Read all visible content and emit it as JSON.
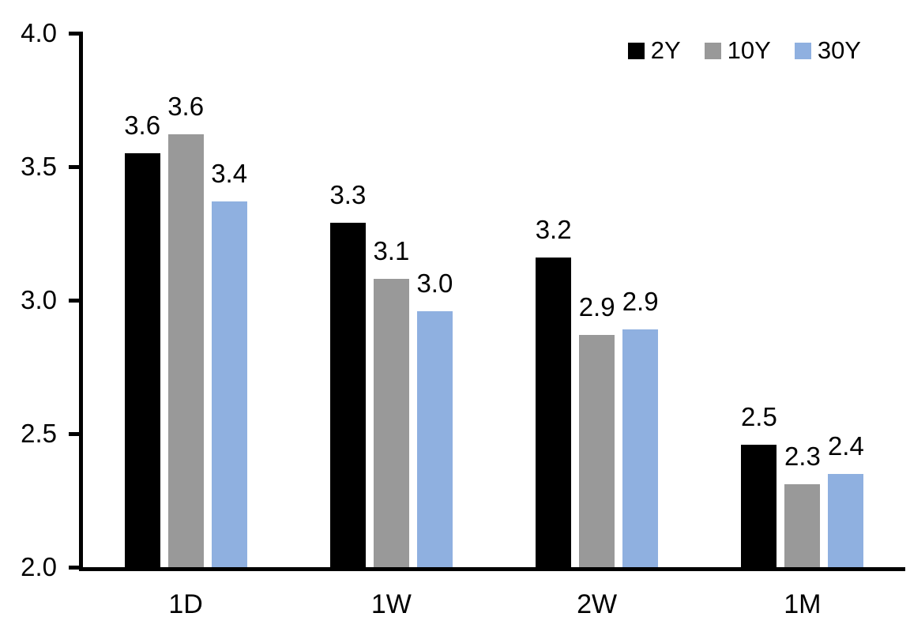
{
  "chart_data": {
    "type": "bar",
    "title": "",
    "categories": [
      "1D",
      "1W",
      "2W",
      "1M"
    ],
    "series": [
      {
        "name": "2Y",
        "color": "#000000",
        "values": [
          3.55,
          3.29,
          3.16,
          2.46
        ],
        "labels": [
          "3.6",
          "3.3",
          "3.2",
          "2.5"
        ]
      },
      {
        "name": "10Y",
        "color": "#999999",
        "values": [
          3.62,
          3.08,
          2.87,
          2.31
        ],
        "labels": [
          "3.6",
          "3.1",
          "2.9",
          "2.3"
        ]
      },
      {
        "name": "30Y",
        "color": "#8FB0E0",
        "values": [
          3.37,
          2.96,
          2.89,
          2.35
        ],
        "labels": [
          "3.4",
          "3.0",
          "2.9",
          "2.4"
        ]
      }
    ],
    "y_axis": {
      "min": 2.0,
      "max": 4.0,
      "tick_values": [
        4.0,
        3.5,
        3.0,
        2.5,
        2.0
      ],
      "tick_labels": [
        "4.0",
        "3.5",
        "3.0",
        "2.5",
        "2.0"
      ]
    },
    "x_axis": {
      "label": ""
    },
    "legend": {
      "position": "top-right",
      "entries": [
        "2Y",
        "10Y",
        "30Y"
      ]
    },
    "grid": false
  },
  "colors": {
    "axis": "#000000",
    "text": "#000000",
    "background": "#FFFFFF"
  }
}
